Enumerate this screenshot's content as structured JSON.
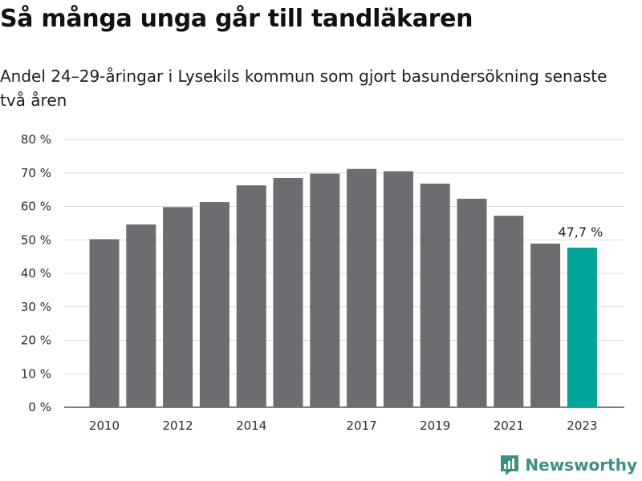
{
  "title": "Så många unga går till tandläkaren",
  "subtitle": "Andel 24–29-åringar i Lysekils kommun som gjort basundersökning senaste två åren",
  "brand": {
    "name": "Newsworthy",
    "color": "#3f8f86",
    "icon": "newsworthy-logo-icon"
  },
  "colors": {
    "bar": "#6d6c71",
    "highlight": "#00a49a",
    "grid": "#dcdcdc"
  },
  "chart_data": {
    "type": "bar",
    "x": [
      2010,
      2011,
      2012,
      2013,
      2014,
      2015,
      2016,
      2017,
      2018,
      2019,
      2020,
      2021,
      2022,
      2023
    ],
    "values": [
      50.2,
      54.6,
      59.8,
      61.3,
      66.3,
      68.5,
      69.8,
      71.2,
      70.5,
      66.8,
      62.3,
      57.2,
      48.9,
      47.7
    ],
    "x_tick_labels": [
      "2010",
      "2012",
      "2014",
      "2017",
      "2019",
      "2021",
      "2023"
    ],
    "x_tick_years": [
      2010,
      2012,
      2014,
      2017,
      2019,
      2021,
      2023
    ],
    "y_ticks": [
      0,
      10,
      20,
      30,
      40,
      50,
      60,
      70,
      80
    ],
    "y_tick_labels": [
      "0 %",
      "10 %",
      "20 %",
      "30 %",
      "40 %",
      "50 %",
      "60 %",
      "70 %",
      "80 %"
    ],
    "ylim": [
      0,
      80
    ],
    "grid": true,
    "highlight_year": 2023,
    "annotation": "47,7 %"
  }
}
